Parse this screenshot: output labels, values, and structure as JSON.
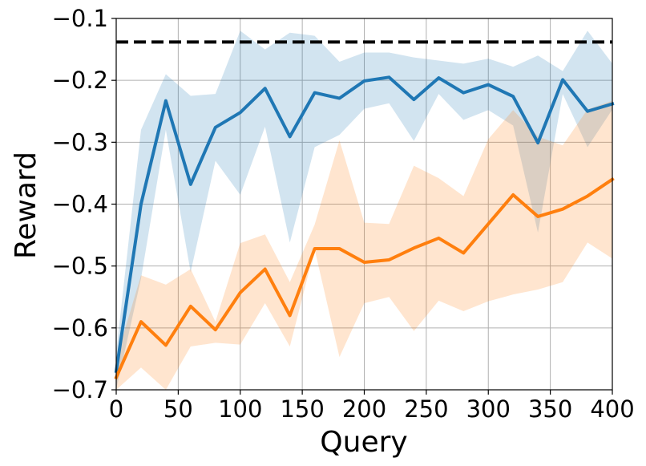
{
  "chart_data": {
    "type": "line",
    "title": "",
    "xlabel": "Query",
    "ylabel": "Reward",
    "xlim": [
      0,
      400
    ],
    "ylim": [
      -0.7,
      -0.1
    ],
    "grid": true,
    "legend": "none",
    "x_ticks": [
      0,
      50,
      100,
      150,
      200,
      250,
      300,
      350,
      400
    ],
    "x_tick_labels": [
      "0",
      "50",
      "100",
      "150",
      "200",
      "250",
      "300",
      "350",
      "400"
    ],
    "y_ticks": [
      -0.7,
      -0.6,
      -0.5,
      -0.4,
      -0.3,
      -0.2,
      -0.1
    ],
    "y_tick_labels": [
      "−0.7",
      "−0.6",
      "−0.5",
      "−0.4",
      "−0.3",
      "−0.2",
      "−0.1"
    ],
    "x": [
      0,
      20,
      40,
      60,
      80,
      100,
      120,
      140,
      160,
      180,
      200,
      220,
      240,
      260,
      280,
      300,
      320,
      340,
      360,
      380,
      400
    ],
    "series": [
      {
        "name": "blue",
        "color": "#1f77b4",
        "band_color": "#1f77b4",
        "values": [
          -0.67,
          -0.4,
          -0.233,
          -0.368,
          -0.276,
          -0.252,
          -0.213,
          -0.291,
          -0.22,
          -0.229,
          -0.201,
          -0.195,
          -0.231,
          -0.196,
          -0.22,
          -0.207,
          -0.226,
          -0.301,
          -0.199,
          -0.25,
          -0.238
        ],
        "upper": [
          -0.64,
          -0.28,
          -0.19,
          -0.225,
          -0.222,
          -0.12,
          -0.15,
          -0.123,
          -0.128,
          -0.17,
          -0.155,
          -0.155,
          -0.163,
          -0.168,
          -0.173,
          -0.165,
          -0.178,
          -0.16,
          -0.185,
          -0.12,
          -0.173
        ],
        "lower": [
          -0.7,
          -0.52,
          -0.28,
          -0.51,
          -0.33,
          -0.385,
          -0.275,
          -0.462,
          -0.308,
          -0.288,
          -0.246,
          -0.237,
          -0.298,
          -0.222,
          -0.264,
          -0.248,
          -0.273,
          -0.446,
          -0.222,
          -0.308,
          -0.247
        ]
      },
      {
        "name": "orange",
        "color": "#ff7f0e",
        "band_color": "#ff7f0e",
        "values": [
          -0.68,
          -0.59,
          -0.628,
          -0.565,
          -0.603,
          -0.543,
          -0.505,
          -0.58,
          -0.472,
          -0.472,
          -0.494,
          -0.49,
          -0.471,
          -0.455,
          -0.479,
          -0.432,
          -0.385,
          -0.42,
          -0.408,
          -0.387,
          -0.36
        ],
        "upper": [
          -0.65,
          -0.515,
          -0.53,
          -0.505,
          -0.59,
          -0.463,
          -0.449,
          -0.526,
          -0.433,
          -0.297,
          -0.43,
          -0.432,
          -0.338,
          -0.358,
          -0.387,
          -0.295,
          -0.248,
          -0.291,
          -0.305,
          -0.247,
          -0.233
        ],
        "lower": [
          -0.7,
          -0.664,
          -0.7,
          -0.63,
          -0.624,
          -0.627,
          -0.56,
          -0.63,
          -0.473,
          -0.647,
          -0.56,
          -0.55,
          -0.605,
          -0.556,
          -0.573,
          -0.557,
          -0.546,
          -0.538,
          -0.526,
          -0.462,
          -0.488
        ]
      }
    ],
    "reference_line": {
      "value": -0.138,
      "color": "#000000",
      "style": "dashed"
    }
  }
}
